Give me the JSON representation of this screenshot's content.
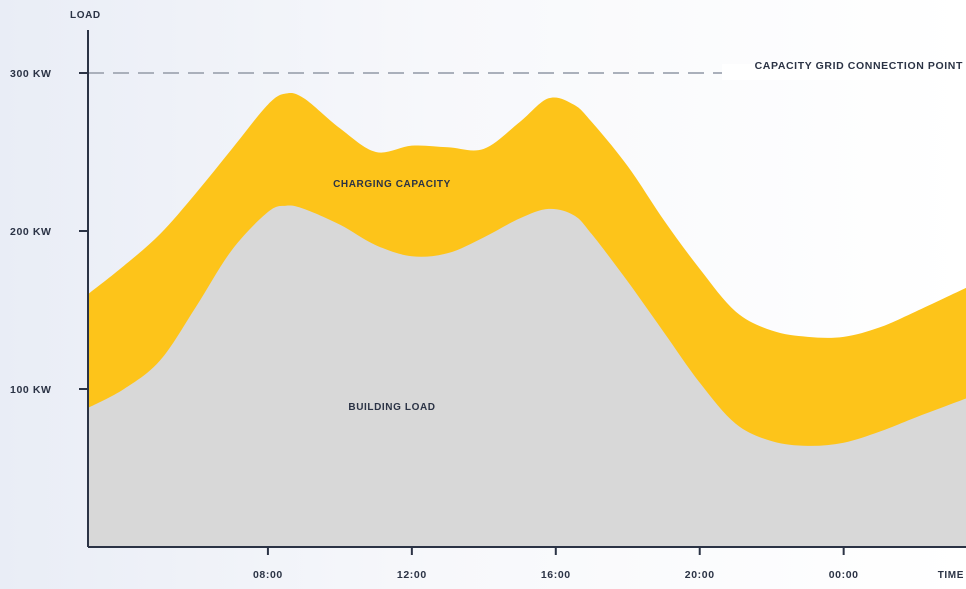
{
  "chart_data": {
    "type": "area",
    "ylabel": "LOAD",
    "xlabel": "TIME",
    "ylim": [
      0,
      330
    ],
    "xlim": [
      3,
      27.4
    ],
    "yticks": [
      {
        "value": 100,
        "label": "100 KW"
      },
      {
        "value": 200,
        "label": "200 KW"
      },
      {
        "value": 300,
        "label": "300 KW"
      }
    ],
    "xticks": [
      {
        "value": 8,
        "label": "08:00"
      },
      {
        "value": 12,
        "label": "12:00"
      },
      {
        "value": 16,
        "label": "16:00"
      },
      {
        "value": 20,
        "label": "20:00"
      },
      {
        "value": 24,
        "label": "00:00"
      }
    ],
    "x": [
      3,
      4,
      5,
      6,
      7,
      8,
      8.5,
      9,
      10,
      11,
      12,
      13,
      14,
      15,
      15.8,
      16.5,
      17,
      18,
      19,
      20,
      21,
      22,
      23,
      24,
      25,
      26,
      27.4
    ],
    "series": [
      {
        "name": "BUILDING LOAD",
        "values": [
          88,
          100,
          118,
          152,
          188,
          212,
          216,
          214,
          204,
          191,
          184,
          186,
          196,
          208,
          214,
          210,
          198,
          168,
          136,
          104,
          78,
          67,
          64,
          66,
          73,
          82,
          94
        ]
      },
      {
        "name": "CHARGING CAPACITY",
        "values": [
          72,
          78,
          80,
          72,
          64,
          68,
          71,
          70,
          61,
          59,
          70,
          67,
          56,
          61,
          70,
          70,
          71,
          73,
          71,
          72,
          71,
          70,
          69,
          67,
          66,
          67,
          70
        ]
      }
    ],
    "reference_line": {
      "value": 300,
      "label": "CAPACITY GRID CONNECTION POINT"
    },
    "annotations": {
      "charging_capacity": "CHARGING CAPACITY",
      "building_load": "BUILDING LOAD"
    },
    "colors": {
      "building_load": "#d8d8d8",
      "charging_capacity": "#fdc41a",
      "axis": "#2b3345",
      "reference_line": "#aab0bb",
      "background_left": "#eef1f7"
    },
    "grid": false,
    "legend": "none"
  }
}
